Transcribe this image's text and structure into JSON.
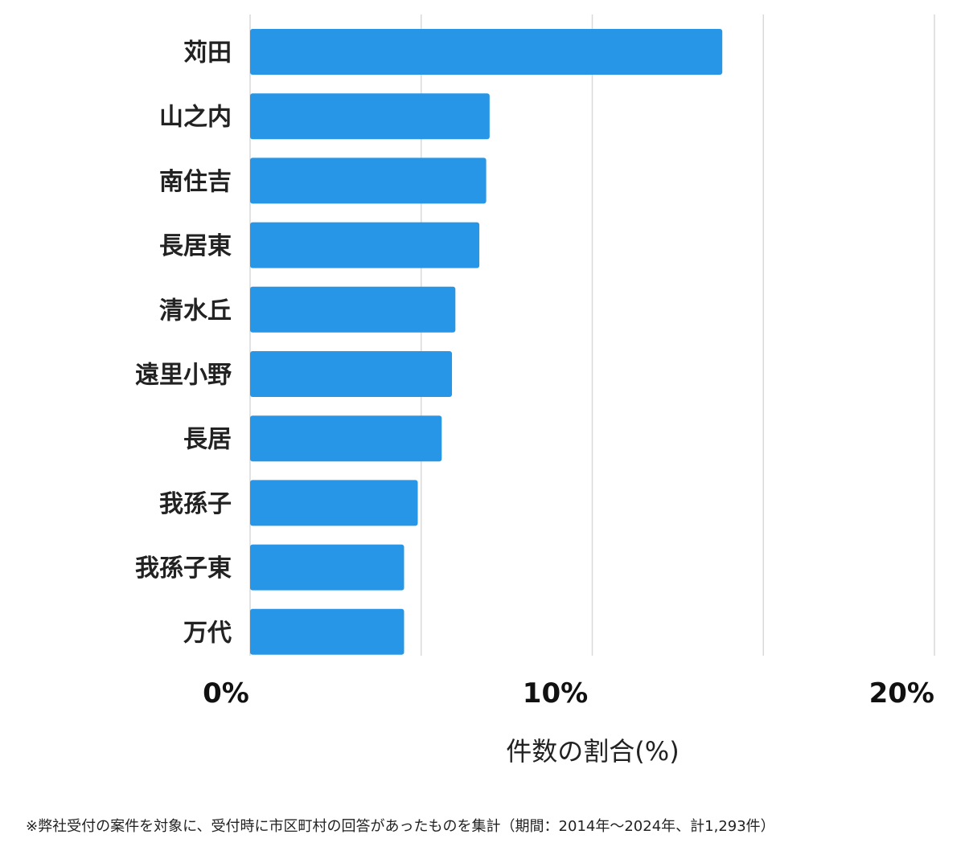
{
  "chart_data": {
    "type": "bar",
    "orientation": "horizontal",
    "categories": [
      "苅田",
      "山之内",
      "南住吉",
      "長居東",
      "清水丘",
      "遠里小野",
      "長居",
      "我孫子",
      "我孫子東",
      "万代"
    ],
    "values": [
      13.8,
      7.0,
      6.9,
      6.7,
      6.0,
      5.9,
      5.6,
      4.9,
      4.5,
      4.5
    ],
    "xlim": [
      0,
      20
    ],
    "xticks": [
      0,
      10,
      20
    ],
    "xtick_labels": [
      "0%",
      "10%",
      "20%"
    ],
    "minor_gridlines": [
      5,
      15
    ],
    "xlabel": "件数の割合(%)",
    "ylabel": "",
    "title": "",
    "grid": true,
    "bar_color": "#2896e6",
    "grid_color": "#d9d9d9"
  },
  "footnote": "※弊社受付の案件を対象に、受付時に市区町村の回答があったものを集計（期間：2014年～2024年、計1,293件）"
}
